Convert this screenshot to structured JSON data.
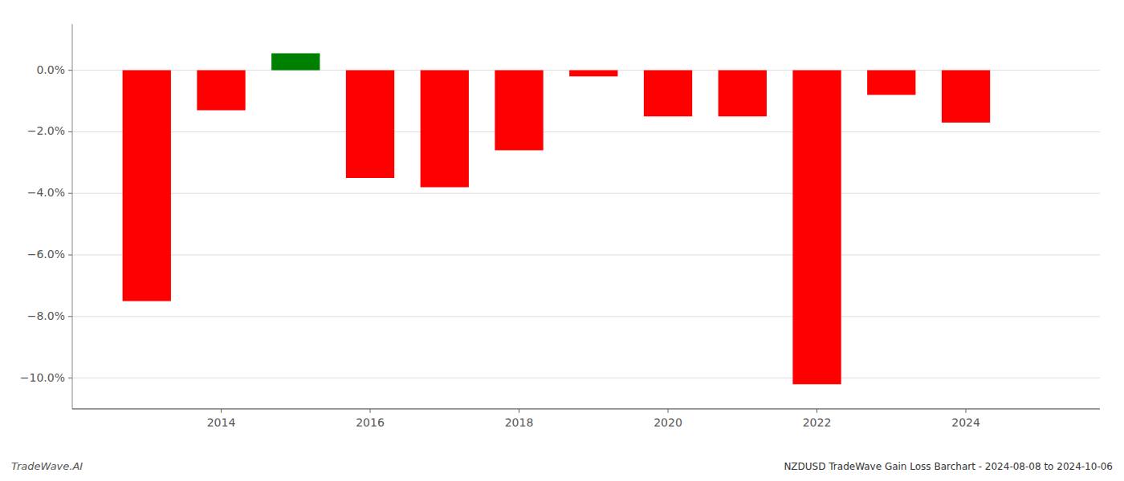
{
  "chart_data": {
    "type": "bar",
    "title": "NZDUSD TradeWave Gain Loss Barchart - 2024-08-08 to 2024-10-06",
    "annotations": [
      "TradeWave.AI"
    ],
    "x": [
      2013,
      2014,
      2015,
      2016,
      2017,
      2018,
      2019,
      2020,
      2021,
      2022,
      2023,
      2024
    ],
    "values": [
      -7.5,
      -1.3,
      0.55,
      -3.5,
      -3.8,
      -2.6,
      -0.2,
      -1.5,
      -1.5,
      -10.2,
      -0.8,
      -1.7
    ],
    "colors": [
      "#ff0000",
      "#ff0000",
      "#008000",
      "#ff0000",
      "#ff0000",
      "#ff0000",
      "#ff0000",
      "#ff0000",
      "#ff0000",
      "#ff0000",
      "#ff0000",
      "#ff0000"
    ],
    "xlim": [
      2012.0,
      2025.8
    ],
    "xticks": [
      2014,
      2016,
      2018,
      2020,
      2022,
      2024
    ],
    "ylim": [
      -11.0,
      1.5
    ],
    "yticks": [
      {
        "value": 0.0,
        "label": "0.0%"
      },
      {
        "value": -2.0,
        "label": "−2.0%"
      },
      {
        "value": -4.0,
        "label": "−4.0%"
      },
      {
        "value": -6.0,
        "label": "−6.0%"
      },
      {
        "value": -8.0,
        "label": "−8.0%"
      },
      {
        "value": -10.0,
        "label": "−10.0%"
      }
    ],
    "grid": true
  }
}
